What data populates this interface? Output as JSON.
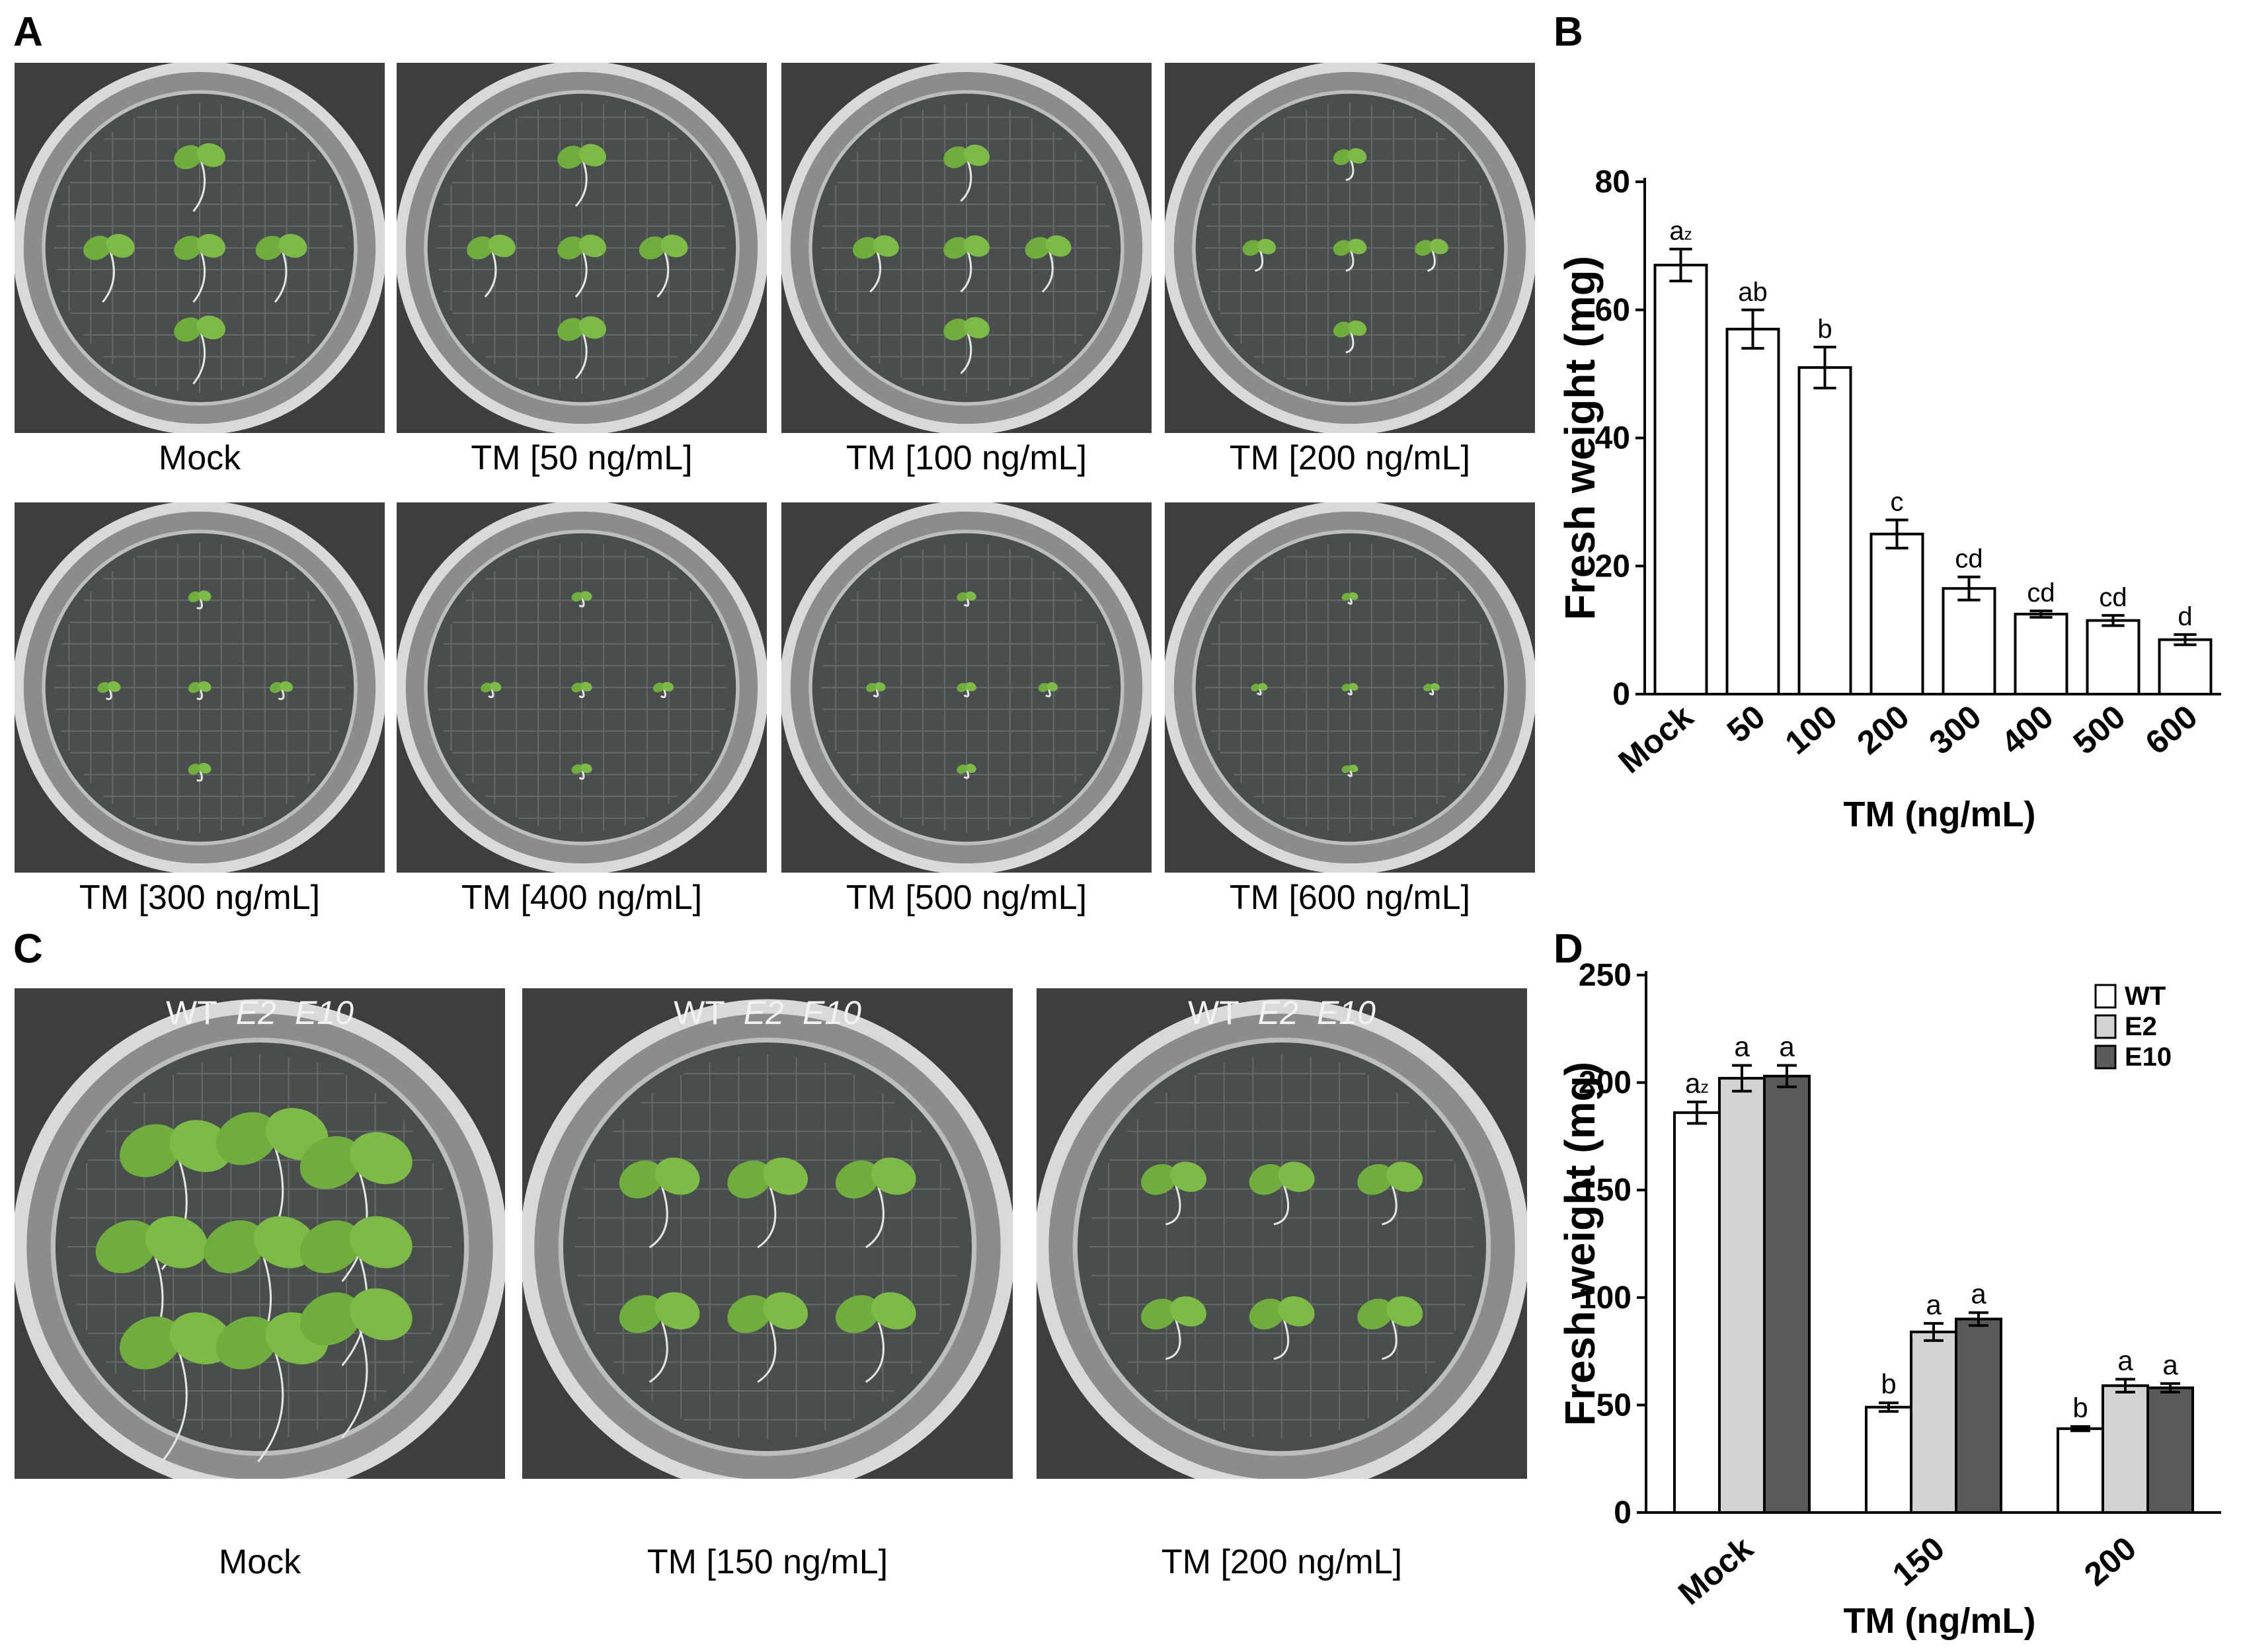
{
  "panels": {
    "A": {
      "letter": "A",
      "plates": [
        {
          "caption": "Mock",
          "seedlings": 5,
          "size": 1.0
        },
        {
          "caption": "TM [50 ng/mL]",
          "seedlings": 5,
          "size": 0.95
        },
        {
          "caption": "TM [100 ng/mL]",
          "seedlings": 5,
          "size": 0.9
        },
        {
          "caption": "TM [200 ng/mL]",
          "seedlings": 5,
          "size": 0.65
        },
        {
          "caption": "TM [300 ng/mL]",
          "seedlings": 5,
          "size": 0.45
        },
        {
          "caption": "TM [400 ng/mL]",
          "seedlings": 5,
          "size": 0.4
        },
        {
          "caption": "TM [500 ng/mL]",
          "seedlings": 5,
          "size": 0.38
        },
        {
          "caption": "TM [600 ng/mL]",
          "seedlings": 5,
          "size": 0.32
        }
      ]
    },
    "C": {
      "letter": "C",
      "genotype_labels": {
        "wt": "WT",
        "e2": "E2",
        "e10": "E10"
      },
      "plates": [
        {
          "caption": "Mock",
          "seedlings": 9,
          "size": 1.0
        },
        {
          "caption": "TM [150 ng/mL]",
          "seedlings": 6,
          "size": 0.8
        },
        {
          "caption": "TM [200 ng/mL]",
          "seedlings": 6,
          "size": 0.65
        }
      ]
    },
    "B": {
      "letter": "B"
    },
    "D": {
      "letter": "D"
    }
  },
  "chart_data": [
    {
      "panel": "B",
      "type": "bar",
      "categories": [
        "Mock",
        "50",
        "100",
        "200",
        "300",
        "400",
        "500",
        "600"
      ],
      "series": [
        {
          "values": [
            67,
            57,
            51,
            25,
            16.5,
            12.5,
            11.5,
            8.5
          ],
          "errors": [
            2.5,
            3,
            3.2,
            2.2,
            1.8,
            0.5,
            0.8,
            0.8
          ],
          "labels": [
            "az",
            "ab",
            "b",
            "c",
            "cd",
            "cd",
            "cd",
            "d"
          ]
        }
      ],
      "xlabel": "TM (ng/mL)",
      "ylabel": "Fresh weight (mg)",
      "ylim": [
        0,
        80
      ],
      "yticks": [
        "0",
        "20",
        "40",
        "60",
        "80"
      ],
      "colors": {
        "bar": "#ffffff",
        "edge": "#000000"
      }
    },
    {
      "panel": "D",
      "type": "bar",
      "categories": [
        "Mock",
        "150",
        "200"
      ],
      "series": [
        {
          "name": "WT",
          "color": "#ffffff",
          "values": [
            186,
            49,
            39
          ],
          "errors": [
            5,
            2,
            1
          ],
          "labels": [
            "az",
            "b",
            "b"
          ]
        },
        {
          "name": "E2",
          "color": "#d3d3d3",
          "values": [
            202,
            84,
            59
          ],
          "errors": [
            6,
            4,
            3
          ],
          "labels": [
            "a",
            "a",
            "a"
          ]
        },
        {
          "name": "E10",
          "color": "#5a5a5a",
          "values": [
            203,
            90,
            58
          ],
          "errors": [
            5,
            3,
            2
          ],
          "labels": [
            "a",
            "a",
            "a"
          ]
        }
      ],
      "xlabel": "TM (ng/mL)",
      "ylabel": "Fresh weight (mg)",
      "ylim": [
        0,
        250
      ],
      "yticks": [
        "0",
        "50",
        "100",
        "150",
        "200",
        "250"
      ],
      "legend": "top-right"
    }
  ]
}
